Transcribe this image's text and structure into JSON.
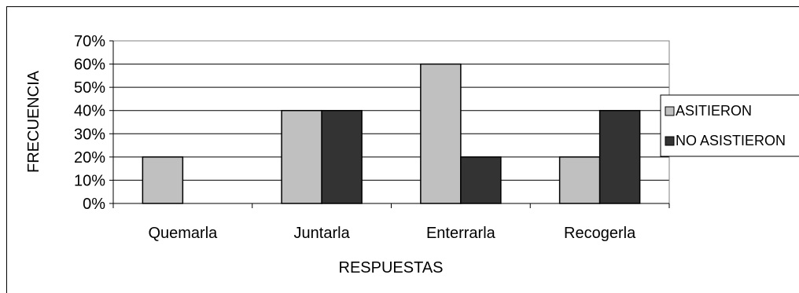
{
  "chart_data": {
    "type": "bar",
    "title": "",
    "xlabel": "RESPUESTAS",
    "ylabel": "FRECUENCIA",
    "categories": [
      "Quemarla",
      "Juntarla",
      "Enterrarla",
      "Recogerla"
    ],
    "series": [
      {
        "name": "ASITIERON",
        "values": [
          20,
          40,
          60,
          20
        ],
        "color": "#c0c0c0"
      },
      {
        "name": "NO ASISTIERON",
        "values": [
          0,
          40,
          20,
          40
        ],
        "color": "#333333"
      }
    ],
    "ylim": [
      0,
      70
    ],
    "yticks": [
      "0%",
      "10%",
      "20%",
      "30%",
      "40%",
      "50%",
      "60%",
      "70%"
    ],
    "grid": true,
    "legend_position": "right",
    "plot_background": "#ffffff",
    "gridline_color": "#000000"
  }
}
